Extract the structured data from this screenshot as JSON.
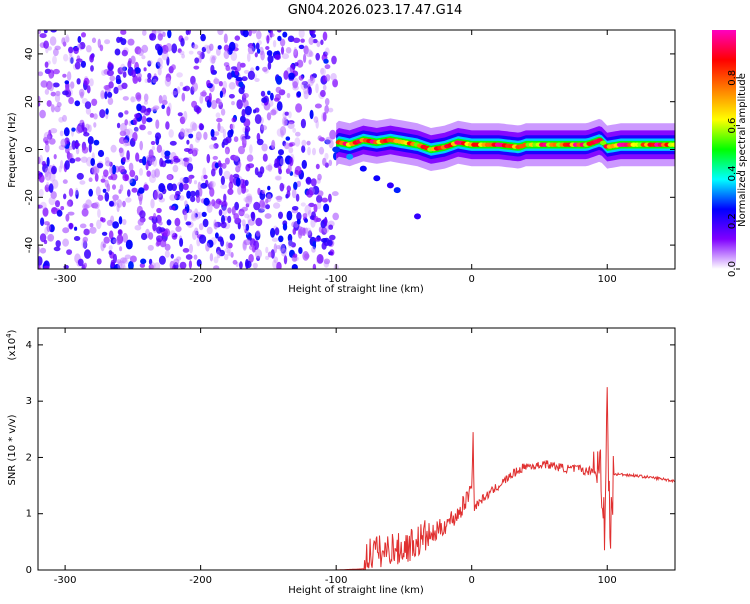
{
  "title": "GN04.2026.023.17.47.G14",
  "chart_data": [
    {
      "type": "heatmap",
      "xlabel": "Height of straight line (km)",
      "ylabel": "Frequency (Hz)",
      "xlim": [
        -320,
        150
      ],
      "ylim": [
        -50,
        50
      ],
      "x_ticks": [
        -300,
        -200,
        -100,
        0,
        100
      ],
      "y_ticks": [
        -40,
        -20,
        0,
        20,
        40
      ],
      "colorbar": {
        "label": "Normalized spectral amplitude",
        "range": [
          0,
          1
        ],
        "ticks": [
          "0.0",
          "0.2",
          "0.4",
          "0.6",
          "0.8"
        ],
        "tick_values": [
          0,
          0.2,
          0.4,
          0.6,
          0.8
        ],
        "colors": [
          "#ffffff",
          "#8000ff",
          "#0000ff",
          "#00ffff",
          "#00ff00",
          "#ffff00",
          "#ff8000",
          "#ff0000",
          "#ff00c0"
        ]
      },
      "noise_region_x": [
        -320,
        -100
      ],
      "signal_band": [
        [
          -98,
          3
        ],
        [
          -90,
          2
        ],
        [
          -80,
          4
        ],
        [
          -70,
          3
        ],
        [
          -60,
          4
        ],
        [
          -50,
          3
        ],
        [
          -40,
          2
        ],
        [
          -30,
          0
        ],
        [
          -20,
          1
        ],
        [
          -15,
          2
        ],
        [
          -10,
          3
        ],
        [
          0,
          2
        ],
        [
          20,
          2
        ],
        [
          35,
          1
        ],
        [
          40,
          2
        ],
        [
          60,
          2
        ],
        [
          70,
          2
        ],
        [
          85,
          2
        ],
        [
          95,
          4
        ],
        [
          100,
          1
        ],
        [
          110,
          2
        ],
        [
          150,
          2
        ]
      ],
      "secondary_branch": [
        [
          -100,
          0
        ],
        [
          -90,
          -3
        ],
        [
          -80,
          -8
        ],
        [
          -70,
          -12
        ],
        [
          -60,
          -15
        ],
        [
          -55,
          -17
        ],
        [
          -40,
          -28
        ]
      ]
    },
    {
      "type": "line",
      "xlabel": "Height of straight line (km)",
      "ylabel": "SNR (10 * v/v)",
      "ymultiplier": "(x10",
      "ymultiplier_exp": "4",
      "xlim": [
        -320,
        150
      ],
      "ylim": [
        0,
        4.3
      ],
      "x_ticks": [
        -300,
        -200,
        -100,
        0,
        100
      ],
      "y_ticks": [
        0,
        1,
        2,
        3,
        4
      ],
      "color": "#e03030",
      "series": [
        {
          "x": [
            -320,
            -200,
            -100,
            -80,
            -78,
            -75,
            -70,
            -65,
            -60,
            -55,
            -50,
            -45,
            -40,
            -35,
            -30,
            -25,
            -20,
            -15,
            -10,
            -5,
            0,
            1,
            2,
            5,
            10,
            20,
            30,
            40,
            45,
            50,
            52,
            60,
            70,
            80,
            85,
            90,
            95,
            98,
            100,
            102,
            105,
            110,
            120,
            130,
            140,
            150
          ],
          "y": [
            0.0,
            0.0,
            0.0,
            0.02,
            0.2,
            0.3,
            0.35,
            0.3,
            0.4,
            0.35,
            0.4,
            0.45,
            0.5,
            0.6,
            0.6,
            0.7,
            0.8,
            0.9,
            1.0,
            1.2,
            1.5,
            2.4,
            1.1,
            1.2,
            1.3,
            1.5,
            1.7,
            1.85,
            1.85,
            1.85,
            1.9,
            1.85,
            1.8,
            1.8,
            1.75,
            1.8,
            1.85,
            1.0,
            2.7,
            0.6,
            1.7,
            1.7,
            1.68,
            1.65,
            1.62,
            1.58
          ]
        }
      ]
    }
  ]
}
